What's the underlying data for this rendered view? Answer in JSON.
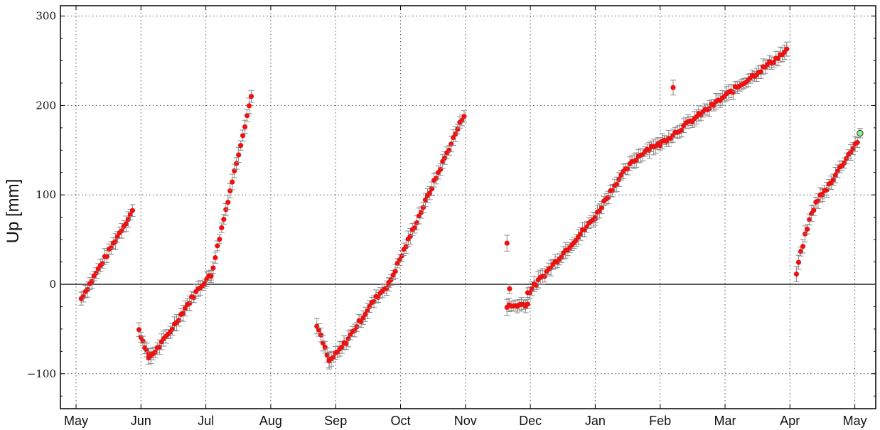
{
  "chart_data": {
    "type": "scatter",
    "title": "",
    "xlabel": "",
    "ylabel": "Up [mm]",
    "x_ticks": [
      "May",
      "Jun",
      "Jul",
      "Aug",
      "Sep",
      "Oct",
      "Nov",
      "Dec",
      "Jan",
      "Feb",
      "Mar",
      "Apr",
      "May"
    ],
    "y_ticks": [
      300,
      200,
      100,
      0,
      -100
    ],
    "ylim": [
      -140,
      312
    ],
    "xlim": [
      -0.15,
      12.3
    ],
    "grid": true,
    "zero_line": true,
    "error_bar_color": "#8a8a8a",
    "point_color": "#ee1111",
    "highlight_color": "#90ee90",
    "segments": [
      {
        "x_start": 0.08,
        "x_end": 0.87,
        "y_start": -16,
        "y_end": 82,
        "curve": "linear"
      },
      {
        "x_start": 0.97,
        "x_end": 1.12,
        "y_start": -52,
        "y_end": -80,
        "curve": "linear"
      },
      {
        "x_start": 1.12,
        "x_end": 2.08,
        "y_start": -82,
        "y_end": 10,
        "curve": "ease-in"
      },
      {
        "x_start": 2.08,
        "x_end": 2.7,
        "y_start": 10,
        "y_end": 210,
        "curve": "linear"
      },
      {
        "x_start": 3.71,
        "x_end": 3.9,
        "y_start": -45,
        "y_end": -86,
        "curve": "linear"
      },
      {
        "x_start": 3.9,
        "x_end": 4.82,
        "y_start": -86,
        "y_end": 0,
        "curve": "ease-in"
      },
      {
        "x_start": 4.82,
        "x_end": 5.98,
        "y_start": 0,
        "y_end": 190,
        "curve": "linear"
      },
      {
        "x_start": 6.64,
        "x_end": 6.96,
        "y_start": -25,
        "y_end": -22,
        "curve": "linear"
      },
      {
        "x_start": 6.96,
        "x_end": 8.0,
        "y_start": -10,
        "y_end": 75,
        "curve": "linear"
      },
      {
        "x_start": 8.0,
        "x_end": 9.0,
        "y_start": 75,
        "y_end": 157,
        "curve": "ease-out"
      },
      {
        "x_start": 9.0,
        "x_end": 10.95,
        "y_start": 157,
        "y_end": 261,
        "curve": "linear"
      },
      {
        "x_start": 11.1,
        "x_end": 11.5,
        "y_start": 12,
        "y_end": 100,
        "curve": "ease-out"
      },
      {
        "x_start": 11.5,
        "x_end": 12.04,
        "y_start": 100,
        "y_end": 160,
        "curve": "linear"
      }
    ],
    "outliers": [
      {
        "x": 6.64,
        "y": 46
      },
      {
        "x": 6.68,
        "y": -5
      },
      {
        "x": 9.2,
        "y": 220
      }
    ],
    "highlight_point": {
      "x": 12.08,
      "y": 169
    }
  }
}
